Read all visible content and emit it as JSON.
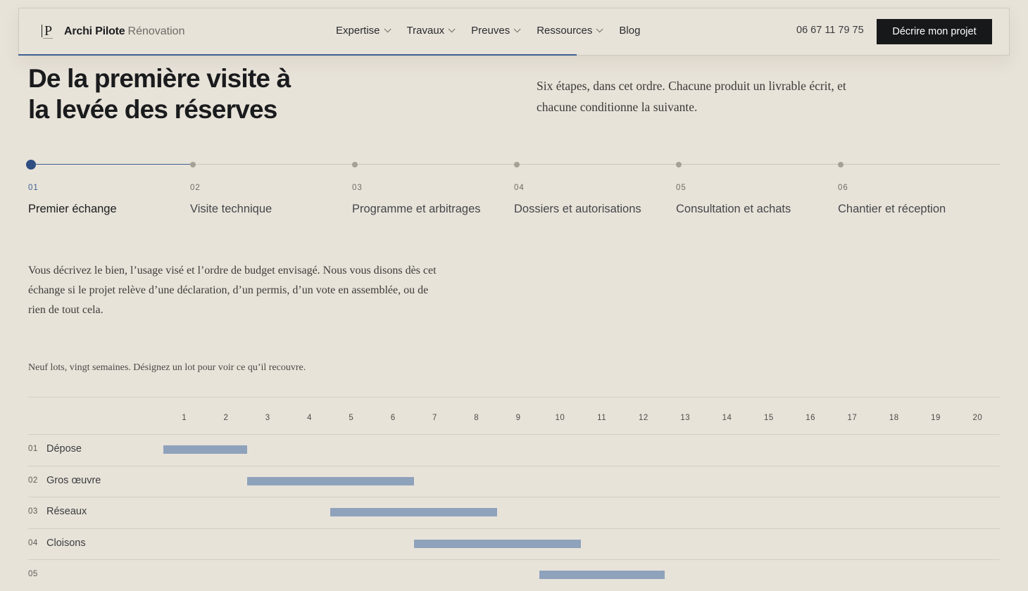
{
  "header": {
    "brand_name": "Archi Pilote",
    "brand_sub": "Rénovation",
    "logo_letter": "P",
    "nav": [
      {
        "label": "Expertise",
        "dropdown": true
      },
      {
        "label": "Travaux",
        "dropdown": true
      },
      {
        "label": "Preuves",
        "dropdown": true
      },
      {
        "label": "Ressources",
        "dropdown": true
      },
      {
        "label": "Blog",
        "dropdown": false
      }
    ],
    "phone": "06 67 11 79 75",
    "cta_label": "Décrire mon projet"
  },
  "hero": {
    "title_line1": "De la première visite à",
    "title_line2": "la levée des réserves",
    "lead_line1": "Six étapes, dans cet ordre. Chacune produit un livrable écrit, et",
    "lead_line2": "chacune conditionne la suivante."
  },
  "steps": [
    {
      "num": "01",
      "label": "Premier échange",
      "active": true
    },
    {
      "num": "02",
      "label": "Visite technique",
      "active": false
    },
    {
      "num": "03",
      "label": "Programme et arbitrages",
      "active": false
    },
    {
      "num": "04",
      "label": "Dossiers et autorisations",
      "active": false
    },
    {
      "num": "05",
      "label": "Consultation et achats",
      "active": false
    },
    {
      "num": "06",
      "label": "Chantier et réception",
      "active": false
    }
  ],
  "step_description": {
    "line1": "Vous décrivez le bien, l’usage visé et l’ordre de budget envisagé. Nous vous disons dès cet",
    "line2": "échange si le projet relève d’une déclaration, d’un permis, d’un vote en assemblée, ou de",
    "line3": "rien de tout cela."
  },
  "gantt_note": "Neuf lots, vingt semaines. Désignez un lot pour voir ce qu’il recouvre.",
  "gantt": {
    "weeks": [
      "1",
      "2",
      "3",
      "4",
      "5",
      "6",
      "7",
      "8",
      "9",
      "10",
      "11",
      "12",
      "13",
      "14",
      "15",
      "16",
      "17",
      "18",
      "19",
      "20"
    ],
    "bar_color": "#8fa2bc",
    "rows": [
      {
        "num": "01",
        "label": "Dépose",
        "start_week": 1,
        "end_week": 2
      },
      {
        "num": "02",
        "label": "Gros œuvre",
        "start_week": 3,
        "end_week": 6
      },
      {
        "num": "03",
        "label": "Réseaux",
        "start_week": 5,
        "end_week": 8
      },
      {
        "num": "04",
        "label": "Cloisons",
        "start_week": 7,
        "end_week": 10
      },
      {
        "num": "05",
        "label": "",
        "start_week": 10,
        "end_week": 12
      }
    ]
  },
  "colors": {
    "background": "#e8e3d9",
    "accent": "#3d5f91",
    "cta_bg": "#17181a"
  }
}
